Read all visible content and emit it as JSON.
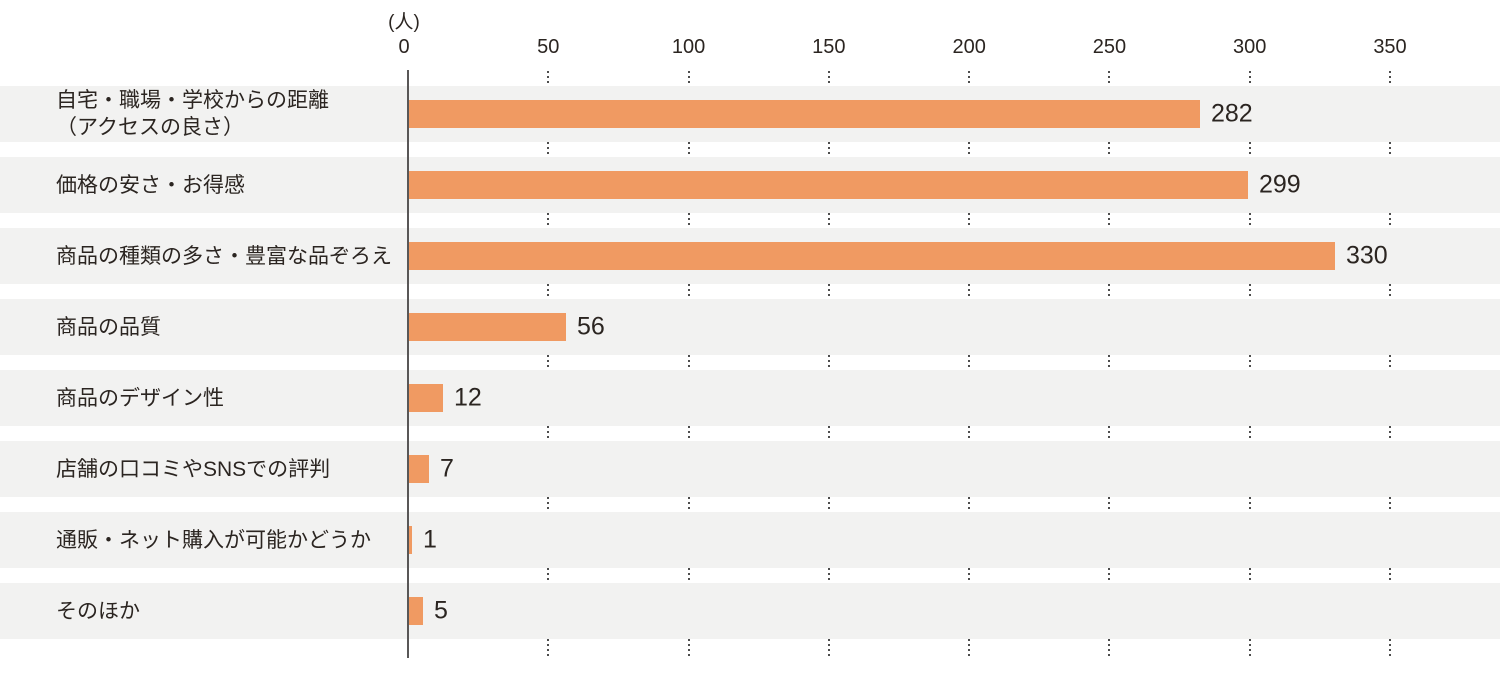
{
  "chart_data": {
    "type": "bar",
    "orientation": "horizontal",
    "title": "",
    "unit_label": "(人)",
    "x_ticks": [
      "0",
      "50",
      "100",
      "150",
      "200",
      "250",
      "300",
      "350"
    ],
    "x_tick_values": [
      0,
      50,
      100,
      150,
      200,
      250,
      300,
      350
    ],
    "xlim": [
      0,
      390
    ],
    "categories": [
      "自宅・職場・学校からの距離\n（アクセスの良さ）",
      "価格の安さ・お得感",
      "商品の種類の多さ・豊富な品ぞろえ",
      "商品の品質",
      "商品のデザイン性",
      "店舗の口コミやSNSでの評判",
      "通販・ネット購入が可能かどうか",
      "そのほか"
    ],
    "values": [
      282,
      299,
      330,
      56,
      12,
      7,
      1,
      5
    ],
    "value_labels": [
      "282",
      "299",
      "330",
      "56",
      "12",
      "7",
      "1",
      "5"
    ],
    "legend_position": "none",
    "grid": "dotted vertical lines at each tick, drawn only in the white gaps between row bands",
    "colors": {
      "bar": "#F09A62",
      "row_background": "#F2F2F1",
      "axis_line": "#595757",
      "grid_dots": "#4D4D4D",
      "text": "#2B2521"
    }
  }
}
